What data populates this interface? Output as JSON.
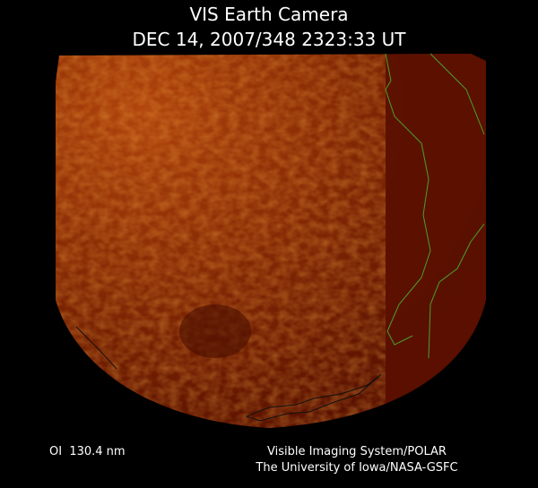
{
  "header": {
    "title": "VIS Earth Camera",
    "timestamp": "DEC 14, 2007/348 2323:33 UT"
  },
  "footer": {
    "wavelength": "OI  130.4 nm",
    "instrument": "Visible Imaging System/POLAR",
    "institution": "The University of Iowa/NASA-GSFC"
  }
}
